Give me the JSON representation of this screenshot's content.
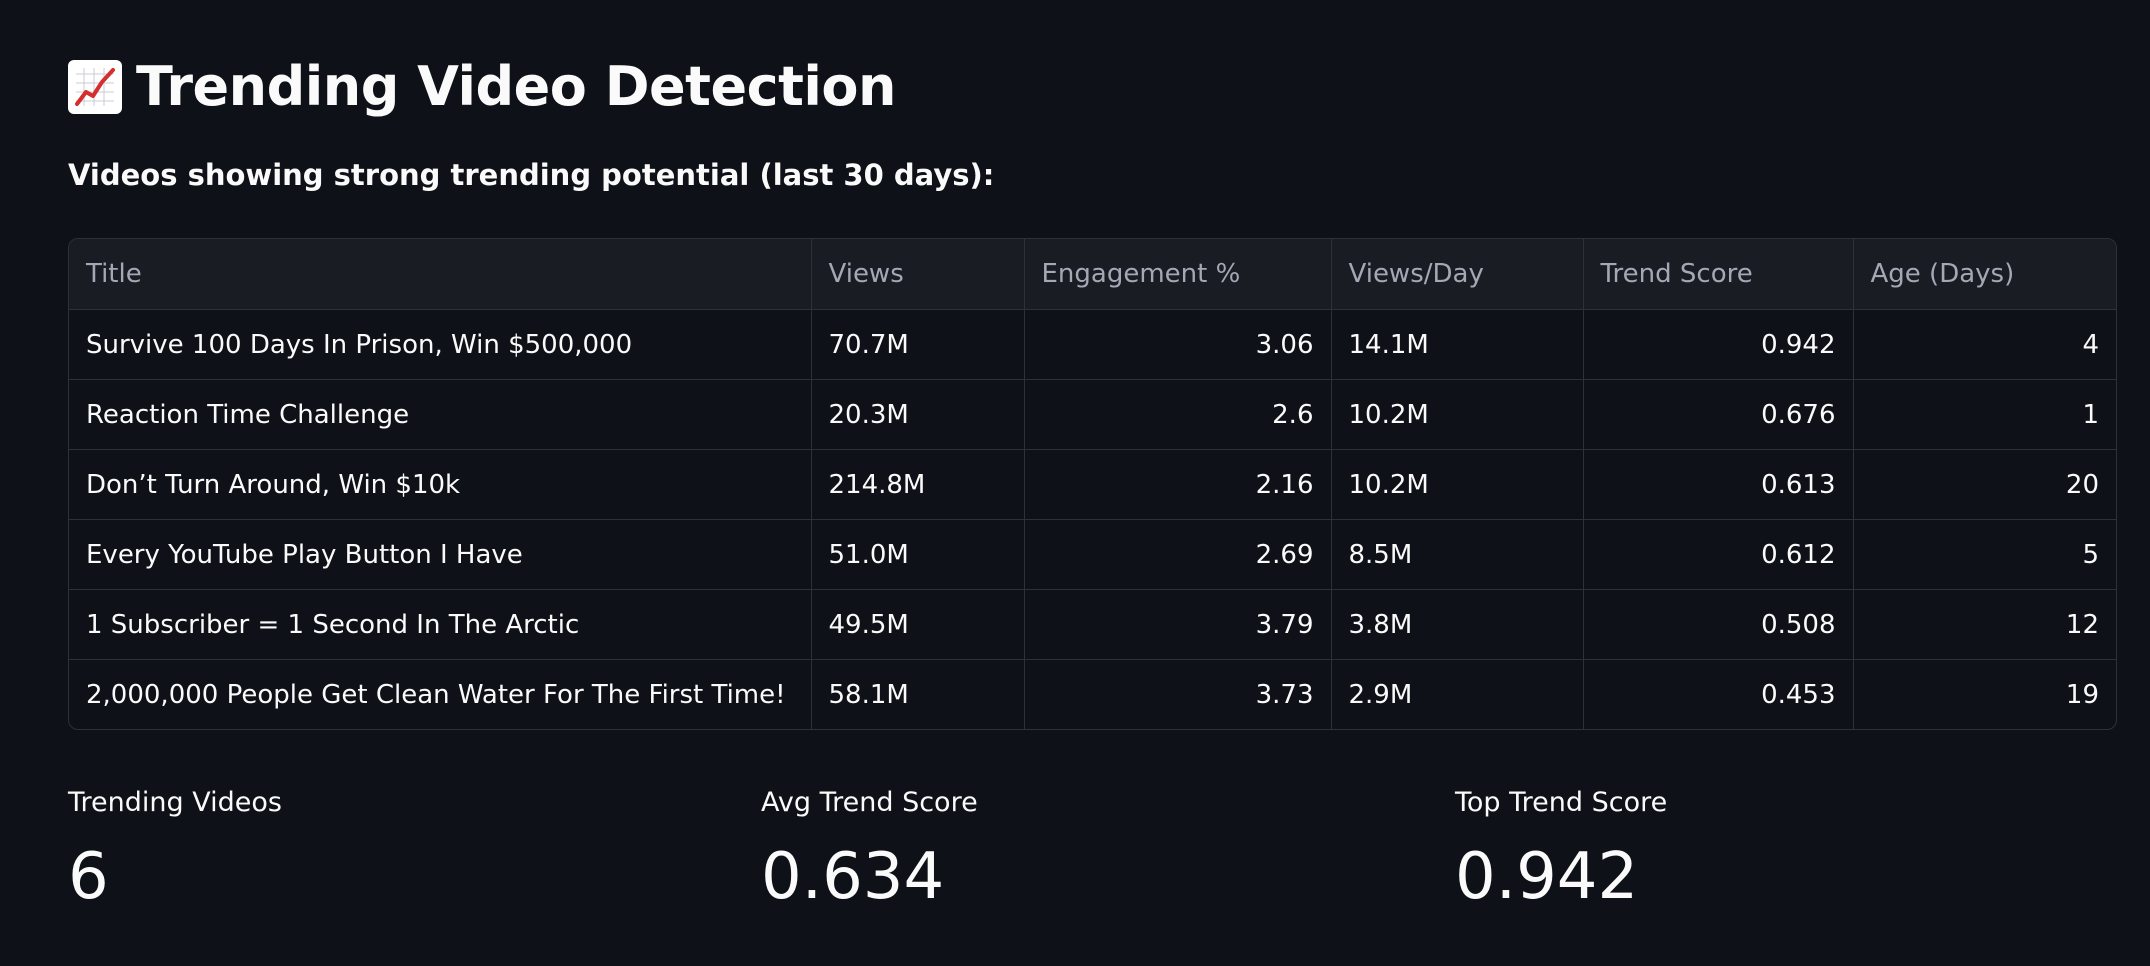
{
  "header": {
    "icon": "chart-increasing-icon",
    "title": "Trending Video Detection",
    "subtitle": "Videos showing strong trending potential (last 30 days):"
  },
  "table": {
    "columns": [
      "Title",
      "Views",
      "Engagement %",
      "Views/Day",
      "Trend Score",
      "Age (Days)"
    ],
    "rows": [
      [
        "Survive 100 Days In Prison, Win $500,000",
        "70.7M",
        "3.06",
        "14.1M",
        "0.942",
        "4"
      ],
      [
        "Reaction Time Challenge",
        "20.3M",
        "2.6",
        "10.2M",
        "0.676",
        "1"
      ],
      [
        "Don’t Turn Around, Win $10k",
        "214.8M",
        "2.16",
        "10.2M",
        "0.613",
        "20"
      ],
      [
        "Every YouTube Play Button I Have",
        "51.0M",
        "2.69",
        "8.5M",
        "0.612",
        "5"
      ],
      [
        "1 Subscriber = 1 Second In The Arctic",
        "49.5M",
        "3.79",
        "3.8M",
        "0.508",
        "12"
      ],
      [
        "2,000,000 People Get Clean Water For The First Time!",
        "58.1M",
        "3.73",
        "2.9M",
        "0.453",
        "19"
      ]
    ]
  },
  "metrics": [
    {
      "label": "Trending Videos",
      "value": "6"
    },
    {
      "label": "Avg Trend Score",
      "value": "0.634"
    },
    {
      "label": "Top Trend Score",
      "value": "0.942"
    }
  ],
  "colors": {
    "background": "#0e1117",
    "header_bg": "#1a1c24",
    "border": "#2f3139",
    "text": "#fafafa",
    "muted_text": "#a3a8b4",
    "icon_line": "#d32f2f"
  }
}
